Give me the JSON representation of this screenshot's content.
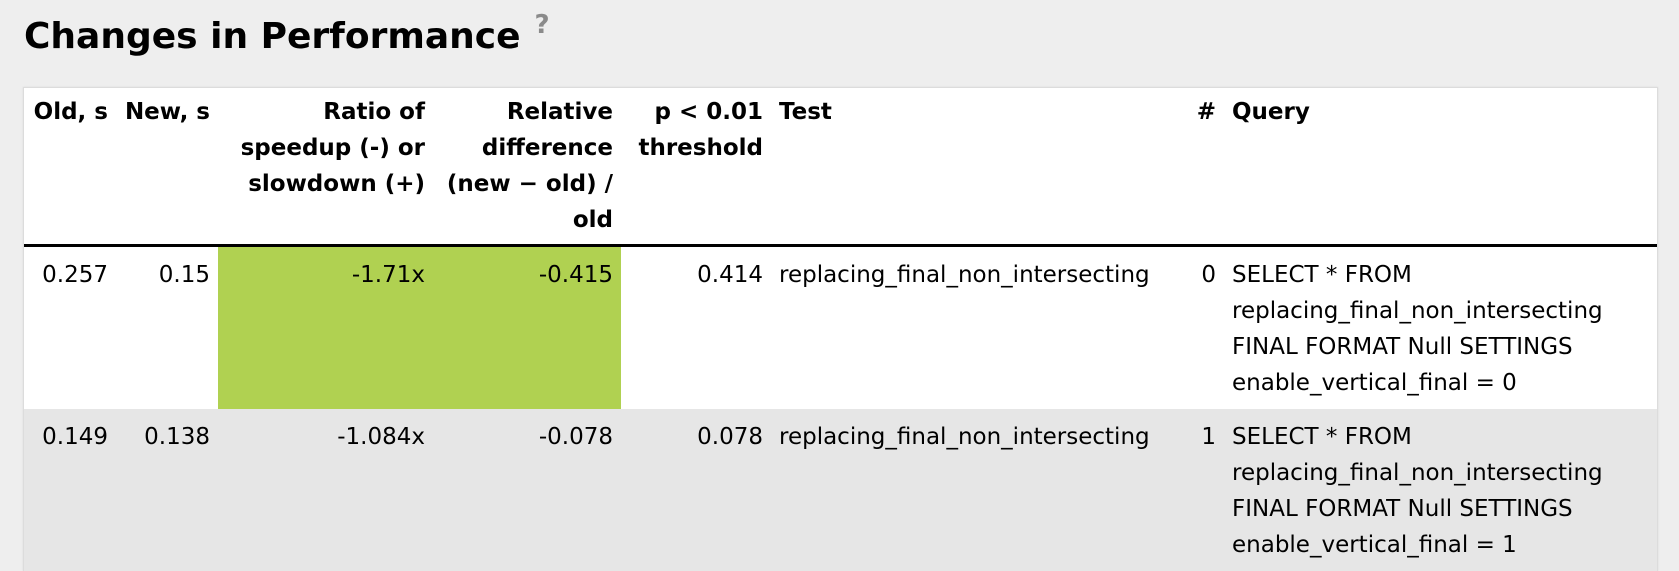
{
  "page": {
    "title": "Changes in Performance",
    "help_symbol": "?"
  },
  "table": {
    "headers": [
      "Old, s",
      "New, s",
      "Ratio of speedup (-) or slowdown (+)",
      "Relative difference (new − old) / old",
      "p < 0.01 threshold",
      "Test",
      "#",
      "Query"
    ],
    "rows": [
      {
        "old": "0.257",
        "new": "0.15",
        "ratio": "-1.71x",
        "relative": "-0.415",
        "threshold": "0.414",
        "test": "replacing_final_non_intersecting",
        "num": "0",
        "query": "SELECT * FROM replacing_final_non_intersecting FINAL FORMAT Null SETTINGS enable_vertical_final = 0"
      },
      {
        "old": "0.149",
        "new": "0.138",
        "ratio": "-1.084x",
        "relative": "-0.078",
        "threshold": "0.078",
        "test": "replacing_final_non_intersecting",
        "num": "1",
        "query": "SELECT * FROM replacing_final_non_intersecting FINAL FORMAT Null SETTINGS enable_vertical_final = 1"
      }
    ]
  },
  "colors": {
    "improvement_highlight": "#b0d151",
    "alt_row": "#e6e6e6",
    "background": "#eeeeee"
  }
}
